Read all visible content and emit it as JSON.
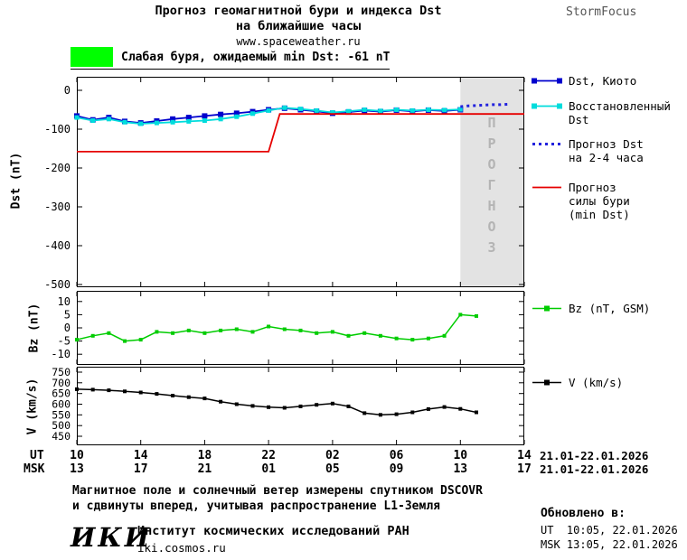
{
  "header": {
    "title_line1": "Прогноз геомагнитной бури и индекса Dst",
    "title_line2": "на ближайшие часы",
    "title_line3": "www.spaceweather.ru",
    "brand": "StormFocus"
  },
  "alert": {
    "label": "Слабая буря, ожидаемый min Dst: -61 nT"
  },
  "colors": {
    "alert_green": "#00ff00",
    "dst_kyoto": "#0000cd",
    "dst_restored": "#00dcdc",
    "dst_forecast": "#2222dd",
    "storm": "#e60000",
    "bz": "#00cc00",
    "v": "#000000",
    "forecast_bg": "#e3e3e3",
    "watermark": "#b4b4b4"
  },
  "axis_labels": {
    "dst": "Dst (nT)",
    "bz": "Bz (nT)",
    "v": "V (km/s)"
  },
  "legend": {
    "dst_kyoto": "Dst, Киото",
    "dst_restored_1": "Восстановленный",
    "dst_restored_2": "Dst",
    "dst_forecast_1": "Прогноз Dst",
    "dst_forecast_2": "на 2-4 часа",
    "storm_1": "Прогноз",
    "storm_2": "силы бури",
    "storm_3": "(min Dst)",
    "bz": "Bz (nT, GSM)",
    "v": "V (km/s)"
  },
  "xaxis": {
    "ut_label": "UT",
    "msk_label": "MSK",
    "hours": [
      0,
      4,
      8,
      12,
      16,
      20,
      24,
      28
    ],
    "ut": [
      "10",
      "14",
      "18",
      "22",
      "02",
      "06",
      "10",
      "14"
    ],
    "msk": [
      "13",
      "17",
      "21",
      "01",
      "05",
      "09",
      "13",
      "17"
    ],
    "ut_date": "21.01-22.01.2026",
    "msk_date": "21.01-22.01.2026"
  },
  "footer": {
    "line1": "Магнитное поле и солнечный ветер измерены спутником DSCOVR",
    "line2": "и сдвинуты вперед, учитывая распространение L1-Земля",
    "logo": "ИКИ",
    "institute": "Институт космических исследований РАН",
    "site": "iki.cosmos.ru"
  },
  "updated": {
    "label": "Обновлено в:",
    "ut": "UT  10:05, 22.01.2026",
    "msk": "MSK 13:05, 22.01.2026"
  },
  "chart_data": [
    {
      "type": "line",
      "title": "",
      "xlabel": "UT/MSK time",
      "ylabel": "Dst (nT)",
      "xlim": [
        0,
        28
      ],
      "ylim": [
        -500,
        0
      ],
      "yticks": [
        0,
        -100,
        -200,
        -300,
        -400,
        -500
      ],
      "xtick_hours": [
        0,
        4,
        8,
        12,
        16,
        20,
        24,
        28
      ],
      "forecast_region": [
        24,
        28
      ],
      "watermark": "ПРОГНОЗ",
      "series": [
        {
          "name": "Dst, Киото",
          "color": "#0000cd",
          "width": 1.8,
          "marker": true,
          "marker_size": 6,
          "x": [
            0,
            1,
            2,
            3,
            4,
            5,
            6,
            7,
            8,
            9,
            10,
            11,
            12,
            13,
            14,
            15,
            16,
            17,
            18,
            19,
            20,
            21,
            22,
            23,
            24
          ],
          "y": [
            -66,
            -76,
            -70,
            -80,
            -84,
            -79,
            -74,
            -70,
            -66,
            -62,
            -59,
            -55,
            -50,
            -46,
            -50,
            -54,
            -59,
            -56,
            -52,
            -55,
            -51,
            -54,
            -51,
            -53,
            -50
          ]
        },
        {
          "name": "Восстановленный Dst",
          "color": "#00dcdc",
          "width": 1.8,
          "marker": true,
          "marker_size": 5,
          "x": [
            0,
            1,
            2,
            3,
            4,
            5,
            6,
            7,
            8,
            9,
            10,
            11,
            12,
            13,
            14,
            15,
            16,
            17,
            18,
            19,
            20,
            21,
            22,
            23,
            24
          ],
          "y": [
            -70,
            -78,
            -74,
            -82,
            -86,
            -84,
            -82,
            -80,
            -78,
            -74,
            -68,
            -60,
            -52,
            -45,
            -48,
            -52,
            -57,
            -54,
            -50,
            -53,
            -50,
            -52,
            -50,
            -51,
            -49
          ]
        },
        {
          "name": "Прогноз Dst на 2-4 часа",
          "color": "#2222dd",
          "width": 3,
          "dash": "3 4",
          "marker": false,
          "x": [
            24,
            24.5,
            25,
            25.5,
            26,
            26.5,
            27
          ],
          "y": [
            -42,
            -40,
            -39,
            -38,
            -37,
            -37,
            -36
          ]
        },
        {
          "name": "Прогноз силы бури (min Dst)",
          "color": "#e60000",
          "width": 1.8,
          "marker": false,
          "x": [
            0,
            12,
            12.7,
            28
          ],
          "y": [
            -158,
            -158,
            -61,
            -61
          ]
        }
      ]
    },
    {
      "type": "line",
      "title": "",
      "xlabel": "UT/MSK time",
      "ylabel": "Bz (nT)",
      "xlim": [
        0,
        28
      ],
      "ylim": [
        -12,
        12
      ],
      "yticks": [
        10,
        5,
        0,
        -5,
        -10
      ],
      "xtick_hours": [
        0,
        4,
        8,
        12,
        16,
        20,
        24,
        28
      ],
      "series": [
        {
          "name": "Bz (nT, GSM)",
          "color": "#00cc00",
          "width": 1.5,
          "marker": true,
          "marker_size": 4,
          "x": [
            0,
            1,
            2,
            3,
            4,
            5,
            6,
            7,
            8,
            9,
            10,
            11,
            12,
            13,
            14,
            15,
            16,
            17,
            18,
            19,
            20,
            21,
            22,
            23,
            24,
            25
          ],
          "y": [
            -4.5,
            -3,
            -2,
            -5,
            -4.5,
            -1.5,
            -2,
            -1,
            -2,
            -1,
            -0.5,
            -1.5,
            0.5,
            -0.5,
            -1,
            -2,
            -1.5,
            -3,
            -2,
            -3,
            -4,
            -4.5,
            -4,
            -3,
            5,
            4.5
          ]
        }
      ]
    },
    {
      "type": "line",
      "title": "",
      "xlabel": "UT/MSK time",
      "ylabel": "V (km/s)",
      "xlim": [
        0,
        28
      ],
      "ylim": [
        450,
        750
      ],
      "yticks": [
        750,
        700,
        650,
        600,
        550,
        500,
        450
      ],
      "xtick_hours": [
        0,
        4,
        8,
        12,
        16,
        20,
        24,
        28
      ],
      "series": [
        {
          "name": "V (km/s)",
          "color": "#000000",
          "width": 1.5,
          "marker": true,
          "marker_size": 4,
          "x": [
            0,
            1,
            2,
            3,
            4,
            5,
            6,
            7,
            8,
            9,
            10,
            11,
            12,
            13,
            14,
            15,
            16,
            17,
            18,
            19,
            20,
            21,
            22,
            23,
            24,
            25
          ],
          "y": [
            670,
            668,
            665,
            660,
            655,
            648,
            640,
            633,
            627,
            612,
            600,
            592,
            586,
            583,
            590,
            597,
            603,
            590,
            558,
            550,
            553,
            562,
            577,
            587,
            578,
            562
          ]
        }
      ]
    }
  ]
}
